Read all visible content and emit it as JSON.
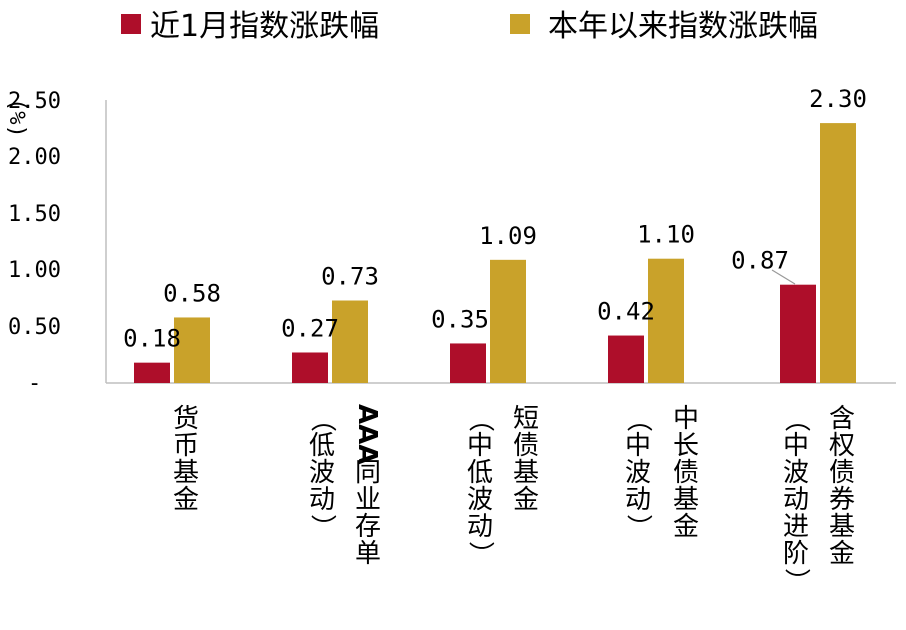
{
  "chart_data": {
    "type": "bar",
    "unit_label": "(%)",
    "legend": {
      "position": "top",
      "items": [
        {
          "name": "近1月指数涨跌幅",
          "color": "#AE0E2A"
        },
        {
          "name": "本年以来指数涨跌幅",
          "color": "#C9A22A"
        }
      ]
    },
    "y_ticks": [
      "-",
      "0.50",
      "1.00",
      "1.50",
      "2.00",
      "2.50"
    ],
    "ylim": [
      0,
      2.5
    ],
    "categories": [
      {
        "col1": "货币基金",
        "col2": ""
      },
      {
        "col1": "AAA同业存单",
        "col2": "（低波动）"
      },
      {
        "col1": "短债基金",
        "col2": "（中低波动）"
      },
      {
        "col1": "中长债基金",
        "col2": "（中波动）"
      },
      {
        "col1": "含权债券基金",
        "col2": "（中波动进阶）"
      }
    ],
    "series": [
      {
        "name": "近1月指数涨跌幅",
        "values": [
          0.18,
          0.27,
          0.35,
          0.42,
          0.87
        ],
        "labels": [
          "0.18",
          "0.27",
          "0.35",
          "0.42",
          "0.87"
        ]
      },
      {
        "name": "本年以来指数涨跌幅",
        "values": [
          0.58,
          0.73,
          1.09,
          1.1,
          2.3
        ],
        "labels": [
          "0.58",
          "0.73",
          "1.09",
          "1.10",
          "2.30"
        ]
      }
    ],
    "grid": false
  }
}
